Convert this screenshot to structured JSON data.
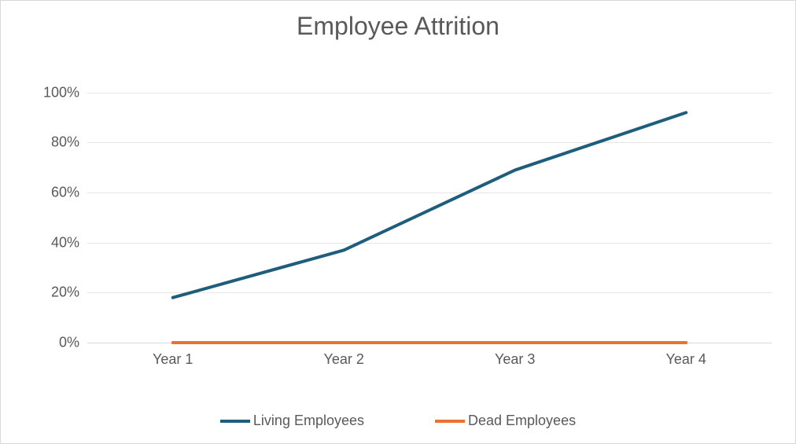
{
  "chart": {
    "type": "line",
    "title": "Employee Attrition",
    "title_fontsize": 32,
    "title_color": "#595959",
    "background_color": "#ffffff",
    "border_color": "#d9d9d9",
    "grid_color": "#e6e6e6",
    "axis_label_color": "#595959",
    "axis_label_fontsize": 18,
    "ylim": [
      0,
      110
    ],
    "yticks": [
      0,
      20,
      40,
      60,
      80,
      100
    ],
    "ytick_labels": [
      "0%",
      "20%",
      "40%",
      "60%",
      "80%",
      "100%"
    ],
    "categories": [
      "Year 1",
      "Year 2",
      "Year 3",
      "Year 4"
    ],
    "series": [
      {
        "name": "Living Employees",
        "color": "#1f5d7c",
        "line_width": 4,
        "values": [
          18,
          37,
          69,
          92
        ]
      },
      {
        "name": "Dead Employees",
        "color": "#e97132",
        "line_width": 4,
        "values": [
          0,
          0,
          0,
          0
        ]
      }
    ],
    "legend": {
      "position": "bottom",
      "items": [
        "Living Employees",
        "Dead Employees"
      ]
    }
  }
}
